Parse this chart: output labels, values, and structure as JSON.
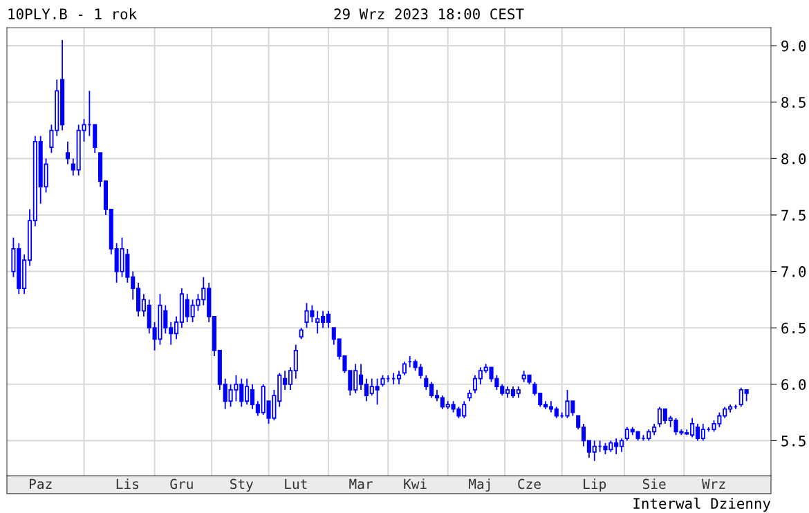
{
  "chart_data": {
    "type": "candlestick",
    "title": "10PLY.B - 1 rok",
    "subtitle": "29 Wrz 2023 18:00 CEST",
    "annotations": [
      "Interwal Dzienny"
    ],
    "categories": [
      null,
      null,
      null,
      null,
      null,
      "Paz",
      null,
      null,
      null,
      null,
      null,
      null,
      null,
      null,
      null,
      null,
      null,
      null,
      null,
      null,
      null,
      "Lis",
      null,
      null,
      null,
      null,
      null,
      null,
      null,
      null,
      null,
      "Gru",
      null,
      null,
      null,
      null,
      null,
      null,
      null,
      null,
      null,
      null,
      "Sty",
      null,
      null,
      null,
      null,
      null,
      null,
      null,
      null,
      null,
      "Lut",
      null,
      null,
      null,
      null,
      null,
      null,
      null,
      null,
      null,
      null,
      null,
      "Mar",
      null,
      null,
      null,
      null,
      null,
      null,
      null,
      null,
      null,
      "Kwi",
      null,
      null,
      null,
      null,
      null,
      null,
      null,
      null,
      null,
      null,
      null,
      "Maj",
      null,
      null,
      null,
      null,
      null,
      null,
      null,
      null,
      "Cze",
      null,
      null,
      null,
      null,
      null,
      null,
      null,
      null,
      null,
      null,
      null,
      "Lip",
      null,
      null,
      null,
      null,
      null,
      null,
      null,
      null,
      null,
      null,
      "Sie",
      null,
      null,
      null,
      null,
      null,
      null,
      null,
      null,
      null,
      null,
      "Wrz",
      null,
      null,
      null,
      null,
      null,
      null
    ],
    "ohlc": [
      [
        7.0,
        7.3,
        6.95,
        7.2
      ],
      [
        7.2,
        7.25,
        6.8,
        6.85
      ],
      [
        6.85,
        7.15,
        6.8,
        7.1
      ],
      [
        7.1,
        7.55,
        7.05,
        7.45
      ],
      [
        7.45,
        8.2,
        7.4,
        8.15
      ],
      [
        8.15,
        8.2,
        7.6,
        7.75
      ],
      [
        7.75,
        8.0,
        7.7,
        7.95
      ],
      [
        8.1,
        8.3,
        8.05,
        8.25
      ],
      [
        8.25,
        8.7,
        8.2,
        8.6
      ],
      [
        8.7,
        9.05,
        8.25,
        8.3
      ],
      [
        8.05,
        8.15,
        7.95,
        8.0
      ],
      [
        7.95,
        8.0,
        7.85,
        7.9
      ],
      [
        7.9,
        8.3,
        7.85,
        8.25
      ],
      [
        8.25,
        8.35,
        8.15,
        8.3
      ],
      [
        8.3,
        8.6,
        8.2,
        8.3
      ],
      [
        8.3,
        8.3,
        8.05,
        8.1
      ],
      [
        8.05,
        8.05,
        7.75,
        7.8
      ],
      [
        7.8,
        7.8,
        7.5,
        7.55
      ],
      [
        7.55,
        7.55,
        7.15,
        7.2
      ],
      [
        7.2,
        7.25,
        6.9,
        7.0
      ],
      [
        7.0,
        7.3,
        6.95,
        7.2
      ],
      [
        7.15,
        7.2,
        6.9,
        6.95
      ],
      [
        6.95,
        7.0,
        6.75,
        6.85
      ],
      [
        6.85,
        6.9,
        6.6,
        6.65
      ],
      [
        6.65,
        6.8,
        6.6,
        6.75
      ],
      [
        6.7,
        6.75,
        6.45,
        6.5
      ],
      [
        6.5,
        6.55,
        6.3,
        6.4
      ],
      [
        6.4,
        6.8,
        6.35,
        6.7
      ],
      [
        6.65,
        6.7,
        6.45,
        6.5
      ],
      [
        6.5,
        6.55,
        6.35,
        6.45
      ],
      [
        6.45,
        6.6,
        6.4,
        6.55
      ],
      [
        6.55,
        6.85,
        6.5,
        6.8
      ],
      [
        6.75,
        6.8,
        6.55,
        6.6
      ],
      [
        6.6,
        6.75,
        6.55,
        6.7
      ],
      [
        6.7,
        6.8,
        6.65,
        6.75
      ],
      [
        6.75,
        6.95,
        6.7,
        6.85
      ],
      [
        6.85,
        6.9,
        6.55,
        6.6
      ],
      [
        6.6,
        6.6,
        6.25,
        6.3
      ],
      [
        6.3,
        6.3,
        5.95,
        6.0
      ],
      [
        6.0,
        6.05,
        5.78,
        5.85
      ],
      [
        5.85,
        6.0,
        5.8,
        5.95
      ],
      [
        5.95,
        6.08,
        5.85,
        6.0
      ],
      [
        6.0,
        6.05,
        5.8,
        5.85
      ],
      [
        5.85,
        6.05,
        5.82,
        5.98
      ],
      [
        5.95,
        6.0,
        5.78,
        5.82
      ],
      [
        5.82,
        5.85,
        5.72,
        5.75
      ],
      [
        5.75,
        6.0,
        5.73,
        5.98
      ],
      [
        5.85,
        5.85,
        5.65,
        5.7
      ],
      [
        5.7,
        5.95,
        5.68,
        5.9
      ],
      [
        5.85,
        6.1,
        5.8,
        6.08
      ],
      [
        6.05,
        6.12,
        5.95,
        6.0
      ],
      [
        6.0,
        6.15,
        5.95,
        6.12
      ],
      [
        6.12,
        6.35,
        6.05,
        6.3
      ],
      [
        6.42,
        6.5,
        6.4,
        6.48
      ],
      [
        6.55,
        6.72,
        6.5,
        6.65
      ],
      [
        6.65,
        6.7,
        6.55,
        6.6
      ],
      [
        6.55,
        6.65,
        6.45,
        6.58
      ],
      [
        6.6,
        6.65,
        6.5,
        6.55
      ],
      [
        6.62,
        6.65,
        6.5,
        6.55
      ],
      [
        6.5,
        6.5,
        6.35,
        6.4
      ],
      [
        6.4,
        6.4,
        6.22,
        6.25
      ],
      [
        6.25,
        6.25,
        6.1,
        6.12
      ],
      [
        6.12,
        6.12,
        5.9,
        5.95
      ],
      [
        5.95,
        6.18,
        5.92,
        6.12
      ],
      [
        6.08,
        6.18,
        5.95,
        6.0
      ],
      [
        6.0,
        6.05,
        5.85,
        5.9
      ],
      [
        5.92,
        6.05,
        5.9,
        5.98
      ],
      [
        5.98,
        6.05,
        5.82,
        5.95
      ],
      [
        6.0,
        6.08,
        5.98,
        6.05
      ],
      [
        6.05,
        6.08,
        6.02,
        6.05
      ],
      [
        6.05,
        6.1,
        6.0,
        6.05
      ],
      [
        6.05,
        6.12,
        6.0,
        6.08
      ],
      [
        6.1,
        6.2,
        6.08,
        6.18
      ],
      [
        6.2,
        6.25,
        6.15,
        6.2
      ],
      [
        6.2,
        6.22,
        6.12,
        6.15
      ],
      [
        6.15,
        6.18,
        6.05,
        6.08
      ],
      [
        6.05,
        6.08,
        5.95,
        5.98
      ],
      [
        6.0,
        6.02,
        5.88,
        5.9
      ],
      [
        5.9,
        5.95,
        5.85,
        5.88
      ],
      [
        5.88,
        5.9,
        5.78,
        5.8
      ],
      [
        5.8,
        5.85,
        5.78,
        5.82
      ],
      [
        5.82,
        5.85,
        5.75,
        5.78
      ],
      [
        5.78,
        5.8,
        5.7,
        5.72
      ],
      [
        5.72,
        5.85,
        5.7,
        5.82
      ],
      [
        5.88,
        5.95,
        5.85,
        5.92
      ],
      [
        5.95,
        6.08,
        5.92,
        6.05
      ],
      [
        6.05,
        6.15,
        6.0,
        6.12
      ],
      [
        6.12,
        6.18,
        6.1,
        6.15
      ],
      [
        6.15,
        6.15,
        6.02,
        6.05
      ],
      [
        6.05,
        6.08,
        5.95,
        5.98
      ],
      [
        5.98,
        6.0,
        5.9,
        5.92
      ],
      [
        5.92,
        5.98,
        5.88,
        5.95
      ],
      [
        5.95,
        5.98,
        5.88,
        5.9
      ],
      [
        5.92,
        5.98,
        5.88,
        5.95
      ],
      [
        6.05,
        6.12,
        6.02,
        6.08
      ],
      [
        6.08,
        6.08,
        6.0,
        6.02
      ],
      [
        6.0,
        6.02,
        5.9,
        5.92
      ],
      [
        5.92,
        5.92,
        5.8,
        5.82
      ],
      [
        5.82,
        5.85,
        5.78,
        5.8
      ],
      [
        5.8,
        5.85,
        5.75,
        5.78
      ],
      [
        5.78,
        5.8,
        5.7,
        5.72
      ],
      [
        5.72,
        5.75,
        5.7,
        5.72
      ],
      [
        5.72,
        5.95,
        5.7,
        5.85
      ],
      [
        5.85,
        5.85,
        5.72,
        5.75
      ],
      [
        5.72,
        5.72,
        5.6,
        5.62
      ],
      [
        5.62,
        5.65,
        5.45,
        5.5
      ],
      [
        5.5,
        5.5,
        5.35,
        5.4
      ],
      [
        5.4,
        5.5,
        5.32,
        5.45
      ],
      [
        5.45,
        5.5,
        5.4,
        5.45
      ],
      [
        5.45,
        5.48,
        5.38,
        5.42
      ],
      [
        5.42,
        5.5,
        5.4,
        5.48
      ],
      [
        5.48,
        5.52,
        5.38,
        5.45
      ],
      [
        5.45,
        5.52,
        5.4,
        5.5
      ],
      [
        5.52,
        5.62,
        5.5,
        5.6
      ],
      [
        5.6,
        5.62,
        5.55,
        5.58
      ],
      [
        5.58,
        5.58,
        5.5,
        5.52
      ],
      [
        5.52,
        5.55,
        5.5,
        5.52
      ],
      [
        5.52,
        5.6,
        5.5,
        5.58
      ],
      [
        5.58,
        5.65,
        5.55,
        5.62
      ],
      [
        5.65,
        5.8,
        5.62,
        5.78
      ],
      [
        5.78,
        5.78,
        5.65,
        5.68
      ],
      [
        5.68,
        5.72,
        5.62,
        5.7
      ],
      [
        5.68,
        5.7,
        5.55,
        5.58
      ],
      [
        5.58,
        5.6,
        5.55,
        5.57
      ],
      [
        5.57,
        5.6,
        5.55,
        5.56
      ],
      [
        5.55,
        5.7,
        5.53,
        5.65
      ],
      [
        5.62,
        5.65,
        5.5,
        5.52
      ],
      [
        5.52,
        5.65,
        5.5,
        5.6
      ],
      [
        5.6,
        5.62,
        5.58,
        5.6
      ],
      [
        5.6,
        5.68,
        5.58,
        5.65
      ],
      [
        5.65,
        5.75,
        5.62,
        5.72
      ],
      [
        5.72,
        5.8,
        5.7,
        5.78
      ],
      [
        5.78,
        5.82,
        5.75,
        5.8
      ],
      [
        5.8,
        5.82,
        5.78,
        5.8
      ],
      [
        5.82,
        5.97,
        5.8,
        5.95
      ],
      [
        5.95,
        5.95,
        5.85,
        5.92
      ]
    ],
    "color": "#0000ff",
    "ylim": [
      5.19,
      9.16
    ],
    "yticks": [
      {
        "value": 5.5,
        "label": "5.5"
      },
      {
        "value": 6,
        "label": "6.0"
      },
      {
        "value": 6.5,
        "label": "6.5"
      },
      {
        "value": 7,
        "label": "7.0"
      },
      {
        "value": 7.5,
        "label": "7.5"
      },
      {
        "value": 8,
        "label": "8.0"
      },
      {
        "value": 8.5,
        "label": "8.5"
      },
      {
        "value": 9,
        "label": "9.0"
      }
    ],
    "grid": true
  }
}
